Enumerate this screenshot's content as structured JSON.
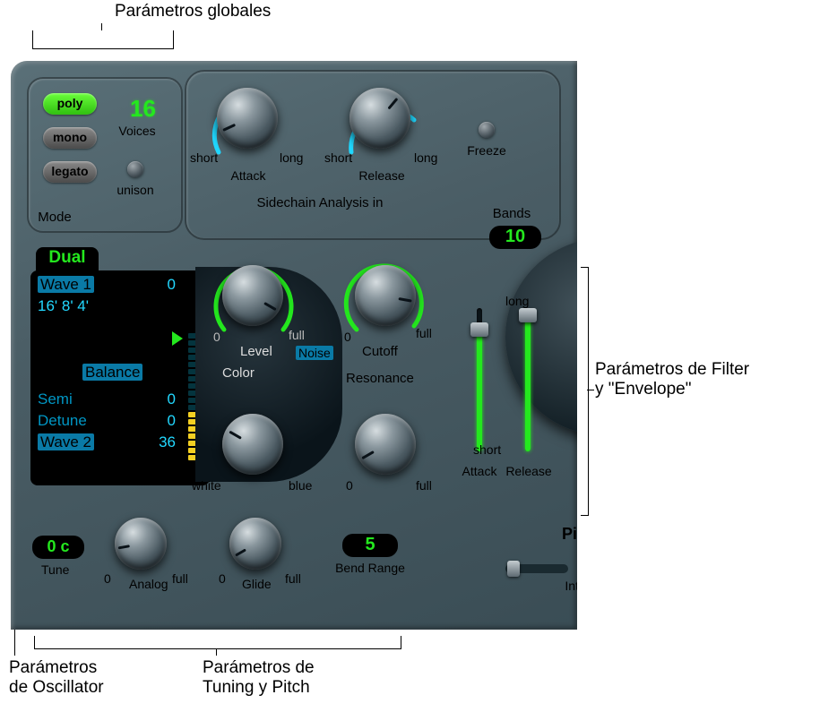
{
  "annotations": {
    "global": "Parámetros globales",
    "filter": "Parámetros de Filter\ny \"Envelope\"",
    "oscillator": "Parámetros\nde Oscillator",
    "tuning": "Parámetros de\nTuning y Pitch"
  },
  "global": {
    "poly_label": "poly",
    "poly_active": true,
    "mono_label": "mono",
    "legato_label": "legato",
    "voices_label": "Voices",
    "voices_value": "16",
    "unison_label": "unison",
    "mode_label": "Mode"
  },
  "sidechain": {
    "title": "Sidechain Analysis in",
    "attack": {
      "label": "Attack",
      "min": "short",
      "max": "long",
      "angle": -120,
      "arc_color": "#20d8ff"
    },
    "release": {
      "label": "Release",
      "min": "short",
      "max": "long",
      "angle": -20,
      "arc_color": "#20d8ff"
    },
    "freeze_label": "Freeze",
    "bands_label": "Bands",
    "bands_value": "10"
  },
  "oscillator": {
    "mode_value": "Dual",
    "wave1": {
      "label": "Wave 1",
      "value": "0"
    },
    "footage": "16' 8' 4'",
    "balance_label": "Balance",
    "semi": {
      "label": "Semi",
      "value": "0"
    },
    "detune": {
      "label": "Detune",
      "value": "0"
    },
    "wave2": {
      "label": "Wave 2",
      "value": "36"
    },
    "meter_segments": 18,
    "meter_lit": 7,
    "meter_color_top": "#2fe066",
    "meter_color_bottom": "#f4d022"
  },
  "mid": {
    "level": {
      "label": "Level",
      "min": "0",
      "max": "full",
      "angle": 120,
      "arc_color": "#24e81e"
    },
    "noise_label": "Noise",
    "color_label": "Color",
    "color": {
      "min": "white",
      "max": "blue",
      "angle": -60
    },
    "cutoff": {
      "label": "Cutoff",
      "min": "0",
      "max": "full",
      "angle": 100,
      "arc_color": "#24e81e"
    },
    "resonance_label": "Resonance",
    "resonance": {
      "min": "0",
      "max": "full",
      "angle": -120
    }
  },
  "env": {
    "long_label": "long",
    "short_label": "short",
    "attack_label": "Attack",
    "attack_pct": 85,
    "release_label": "Release",
    "release_pct": 95
  },
  "bottom": {
    "tune_label": "Tune",
    "tune_value": "0 c",
    "analog": {
      "label": "Analog",
      "min": "0",
      "max": "full",
      "angle": -100
    },
    "glide": {
      "label": "Glide",
      "min": "0",
      "max": "full",
      "angle": -120
    },
    "bend_label": "Bend Range",
    "bend_value": "5",
    "pi_label": "Pi",
    "int_label": "Int"
  },
  "colors": {
    "green_led": "#24e81e",
    "cyan": "#20d8ff"
  }
}
